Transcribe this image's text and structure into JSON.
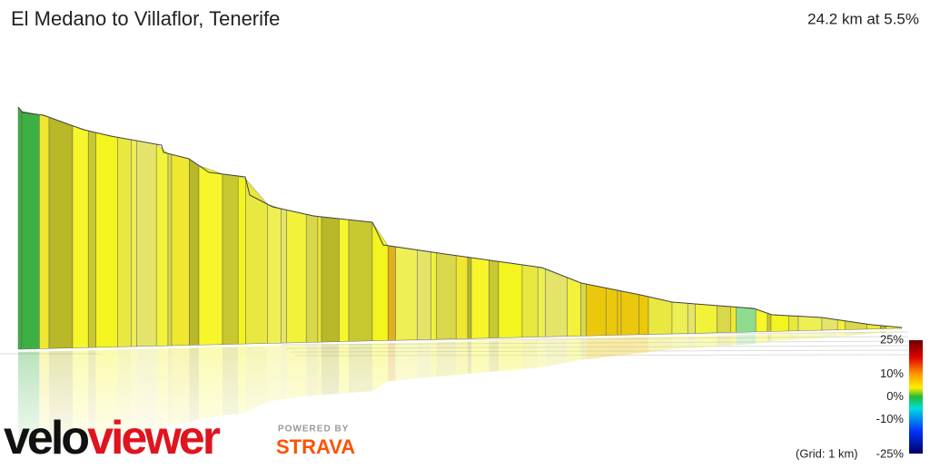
{
  "header": {
    "title": "El Medano to Villaflor, Tenerife",
    "summary": "24.2 km at 5.5%"
  },
  "legend": {
    "grid_note": "(Grid: 1 km)",
    "ylim": [
      -25,
      25
    ],
    "ticks": [
      {
        "value": 25,
        "label": "25%"
      },
      {
        "value": 10,
        "label": "10%"
      },
      {
        "value": 0,
        "label": "0%"
      },
      {
        "value": -10,
        "label": "-10%"
      },
      {
        "value": -25,
        "label": "-25%"
      }
    ]
  },
  "branding": {
    "logo_part1": "velo",
    "logo_part2": "viewer",
    "powered_by": "POWERED BY",
    "strava": "STRAVA"
  }
}
